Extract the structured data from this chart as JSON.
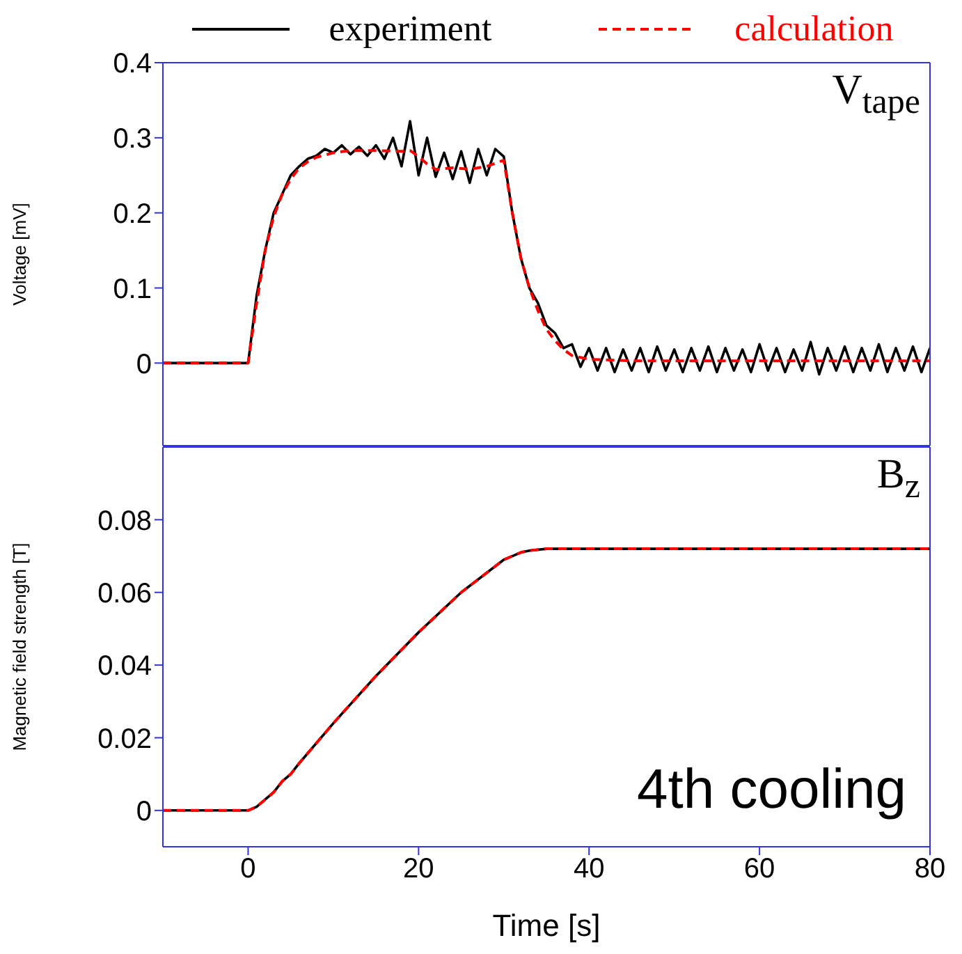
{
  "chart_data": [
    {
      "type": "line",
      "ylabel": "Voltage [mV]",
      "annotations": [
        "V$_{tape}$"
      ],
      "xlim": [
        -10,
        80
      ],
      "xticks": [
        0,
        20,
        40,
        60,
        80
      ],
      "ylim": [
        -0.11,
        0.4
      ],
      "yticks": [
        0,
        0.1,
        0.2,
        0.3,
        0.4
      ],
      "tick_labels": "y",
      "marker": "none",
      "legend": "top",
      "series": [
        {
          "name": "experiment",
          "color": "#000000",
          "line_style": "solid",
          "x": [
            -10,
            -9,
            -8,
            -7,
            -6,
            -5,
            -4,
            -3,
            -2,
            -1,
            0,
            1,
            2,
            3,
            4,
            5,
            6,
            7,
            8,
            9,
            10,
            11,
            12,
            13,
            14,
            15,
            16,
            17,
            18,
            19,
            20,
            21,
            22,
            23,
            24,
            25,
            26,
            27,
            28,
            29,
            30,
            31,
            32,
            33,
            34,
            35,
            36,
            37,
            38,
            39,
            40,
            41,
            42,
            43,
            44,
            45,
            46,
            47,
            48,
            49,
            50,
            51,
            52,
            53,
            54,
            55,
            56,
            57,
            58,
            59,
            60,
            61,
            62,
            63,
            64,
            65,
            66,
            67,
            68,
            69,
            70,
            71,
            72,
            73,
            74,
            75,
            76,
            77,
            78,
            79,
            80
          ],
          "values": [
            0,
            0,
            0,
            0,
            0,
            0,
            0,
            0,
            0,
            0,
            0,
            0.09,
            0.15,
            0.2,
            0.225,
            0.25,
            0.262,
            0.272,
            0.276,
            0.285,
            0.28,
            0.29,
            0.278,
            0.288,
            0.276,
            0.29,
            0.272,
            0.3,
            0.262,
            0.322,
            0.25,
            0.3,
            0.248,
            0.28,
            0.245,
            0.282,
            0.24,
            0.285,
            0.25,
            0.285,
            0.275,
            0.2,
            0.14,
            0.1,
            0.08,
            0.05,
            0.04,
            0.02,
            0.025,
            -0.005,
            0.02,
            -0.01,
            0.02,
            -0.012,
            0.018,
            -0.01,
            0.02,
            -0.012,
            0.022,
            -0.01,
            0.018,
            -0.012,
            0.02,
            -0.01,
            0.022,
            -0.012,
            0.02,
            -0.01,
            0.018,
            -0.012,
            0.025,
            -0.01,
            0.02,
            -0.012,
            0.018,
            -0.01,
            0.028,
            -0.015,
            0.02,
            -0.01,
            0.022,
            -0.012,
            0.02,
            -0.01,
            0.025,
            -0.012,
            0.02,
            -0.01,
            0.022,
            -0.012,
            0.02
          ]
        },
        {
          "name": "calculation",
          "color": "#ff0000",
          "line_style": "dashed",
          "x": [
            -10,
            0,
            1,
            2,
            3,
            4,
            5,
            6,
            7,
            8,
            10,
            12,
            15,
            18,
            19,
            20,
            21,
            22,
            24,
            26,
            28,
            30,
            31,
            32,
            33,
            34,
            35,
            36,
            37,
            38,
            40,
            45,
            80
          ],
          "values": [
            0,
            0,
            0.08,
            0.15,
            0.195,
            0.225,
            0.245,
            0.26,
            0.268,
            0.274,
            0.28,
            0.283,
            0.283,
            0.282,
            0.283,
            0.275,
            0.265,
            0.258,
            0.26,
            0.258,
            0.262,
            0.27,
            0.2,
            0.14,
            0.1,
            0.07,
            0.045,
            0.03,
            0.018,
            0.01,
            0.005,
            0.003,
            0.003
          ]
        }
      ]
    },
    {
      "type": "line",
      "xlabel": "Time [s]",
      "ylabel": "Magnetic field strength [T]",
      "annotations": [
        "B$_{z}$",
        "4th cooling"
      ],
      "xlim": [
        -10,
        80
      ],
      "xticks": [
        0,
        20,
        40,
        60,
        80
      ],
      "ylim": [
        -0.01,
        0.1
      ],
      "yticks": [
        0,
        0.02,
        0.04,
        0.06,
        0.08
      ],
      "marker": "none",
      "series": [
        {
          "color": "#000000",
          "line_style": "solid",
          "x": [
            -10,
            0,
            1,
            2,
            3,
            4,
            5,
            6,
            10,
            15,
            20,
            25,
            30,
            31,
            32,
            33,
            35,
            37,
            40,
            80
          ],
          "values": [
            0,
            0,
            0.001,
            0.003,
            0.005,
            0.008,
            0.01,
            0.013,
            0.024,
            0.037,
            0.049,
            0.06,
            0.069,
            0.07,
            0.071,
            0.0715,
            0.072,
            0.072,
            0.072,
            0.072
          ]
        },
        {
          "color": "#ff0000",
          "line_style": "dashed",
          "x": [
            -10,
            0,
            1,
            2,
            3,
            4,
            5,
            6,
            10,
            15,
            20,
            25,
            30,
            31,
            32,
            33,
            35,
            37,
            40,
            80
          ],
          "values": [
            0,
            0,
            0.001,
            0.003,
            0.005,
            0.008,
            0.01,
            0.013,
            0.024,
            0.037,
            0.049,
            0.06,
            0.069,
            0.07,
            0.071,
            0.0715,
            0.072,
            0.072,
            0.072,
            0.072
          ]
        }
      ]
    }
  ]
}
